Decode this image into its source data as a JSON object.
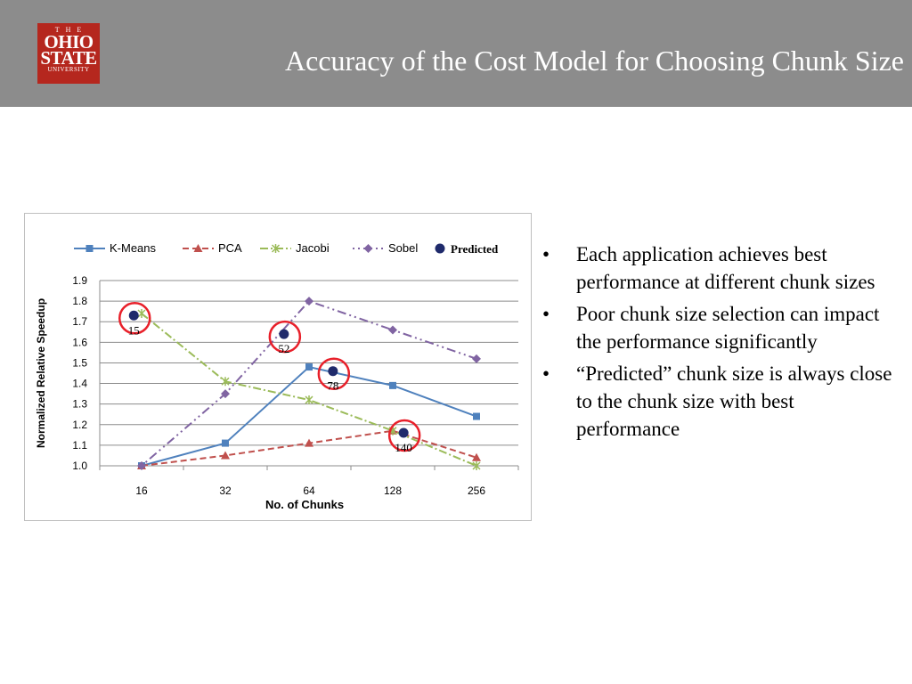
{
  "header": {
    "logo": {
      "line1": "THE",
      "line2": "OHIO",
      "line3": "STATE",
      "line4": "UNIVERSITY"
    },
    "title": "Accuracy of the Cost Model for Choosing Chunk Size",
    "background": "#8c8c8c",
    "logo_color": "#b5271e"
  },
  "bullets": [
    {
      "marker": "•",
      "text": "Each application achieves best performance at different chunk sizes"
    },
    {
      "marker": "•",
      "text": "Poor chunk size selection can impact the performance significantly"
    },
    {
      "marker": "•",
      "text": "“Predicted” chunk size is always close to the chunk size with best performance"
    }
  ],
  "chart_data": {
    "type": "line",
    "title": "",
    "xlabel": "No. of Chunks",
    "ylabel": "Normalized Relative Speedup",
    "categories": [
      "16",
      "32",
      "64",
      "128",
      "256"
    ],
    "ylim": [
      1.0,
      1.9
    ],
    "yticks": [
      "1.0",
      "1.1",
      "1.2",
      "1.3",
      "1.4",
      "1.5",
      "1.6",
      "1.7",
      "1.8",
      "1.9"
    ],
    "grid": true,
    "legend": "top",
    "series": [
      {
        "name": "K-Means",
        "values": [
          1.0,
          1.11,
          1.48,
          1.39,
          1.24
        ],
        "color": "#4f81bd",
        "dash": "solid",
        "marker": "square"
      },
      {
        "name": "PCA",
        "values": [
          1.0,
          1.05,
          1.11,
          1.17,
          1.04
        ],
        "color": "#c0504d",
        "dash": "dashed",
        "marker": "triangle"
      },
      {
        "name": "Jacobi",
        "values": [
          1.74,
          1.41,
          1.32,
          1.17,
          1.0
        ],
        "color": "#9bbb59",
        "dash": "dashdot",
        "marker": "star"
      },
      {
        "name": "Sobel",
        "values": [
          1.0,
          1.35,
          1.8,
          1.66,
          1.52
        ],
        "color": "#8064a2",
        "dash": "dashdotdot",
        "marker": "diamond"
      }
    ],
    "predicted": {
      "name": "Predicted",
      "color": "#1f2a6b",
      "ring_color": "#e8202a",
      "points": [
        {
          "x": 15,
          "y": 1.73,
          "label": "15"
        },
        {
          "x": 52,
          "y": 1.64,
          "label": "52"
        },
        {
          "x": 78,
          "y": 1.46,
          "label": "78"
        },
        {
          "x": 140,
          "y": 1.16,
          "label": "140"
        }
      ]
    }
  }
}
